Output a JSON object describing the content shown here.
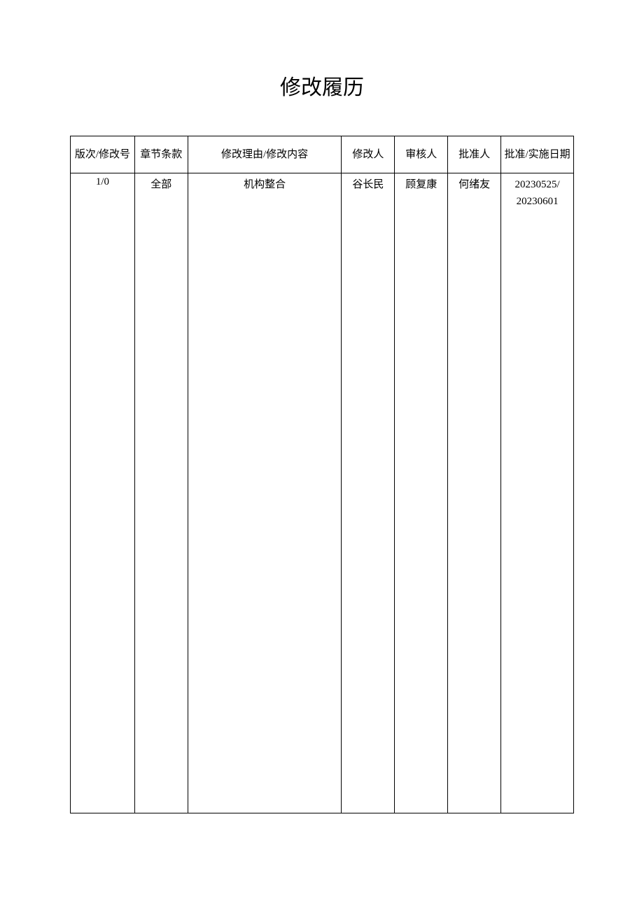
{
  "title": "修改履历",
  "table": {
    "columns": [
      "版次/修改号",
      "章节条款",
      "修改理由/修改内容",
      "修改人",
      "审核人",
      "批准人",
      "批准/实施日期"
    ],
    "column_widths_pct": [
      11.5,
      9.5,
      27.5,
      9.5,
      9.5,
      9.5,
      13
    ],
    "row": {
      "version": "1/0",
      "section": "全部",
      "reason": "机构整合",
      "modifier": "谷长民",
      "reviewer": "顾复康",
      "approver": "何绪友",
      "date_line1": "20230525/",
      "date_line2": "20230601"
    },
    "border_color": "#000000",
    "background_color": "#ffffff",
    "text_color": "#000000",
    "header_fontsize": 15,
    "cell_fontsize": 15,
    "title_fontsize": 30
  }
}
